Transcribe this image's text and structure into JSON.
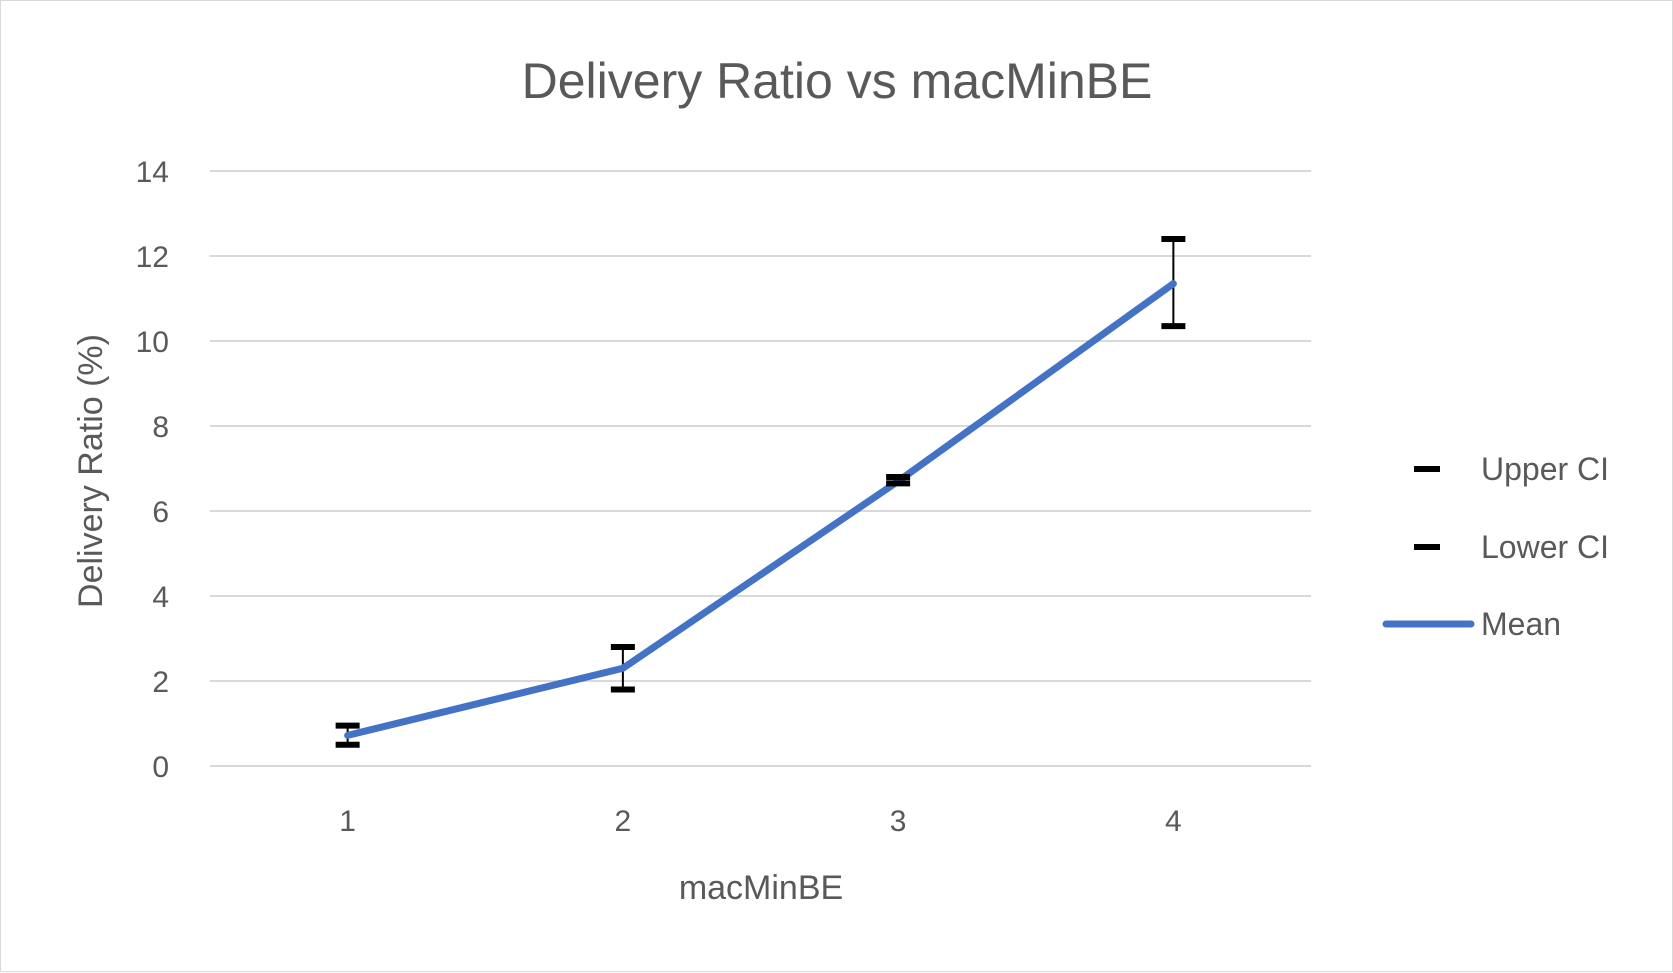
{
  "chart_data": {
    "type": "line",
    "title": "Delivery Ratio vs macMinBE",
    "xlabel": "macMinBE",
    "ylabel": "Delivery Ratio (%)",
    "categories": [
      "1",
      "2",
      "3",
      "4"
    ],
    "ylim": [
      0,
      14
    ],
    "yticks": [
      "0",
      "2",
      "4",
      "6",
      "8",
      "10",
      "12",
      "14"
    ],
    "grid": true,
    "legend_position": "right",
    "series": [
      {
        "name": "Upper CI",
        "values": [
          0.95,
          2.8,
          6.8,
          12.4
        ],
        "color": "#000000",
        "marker": "dash"
      },
      {
        "name": "Lower CI",
        "values": [
          0.5,
          1.8,
          6.65,
          10.35
        ],
        "color": "#000000",
        "marker": "dash"
      },
      {
        "name": "Mean",
        "values": [
          0.72,
          2.3,
          6.7,
          11.35
        ],
        "color": "#4472c4"
      }
    ]
  }
}
